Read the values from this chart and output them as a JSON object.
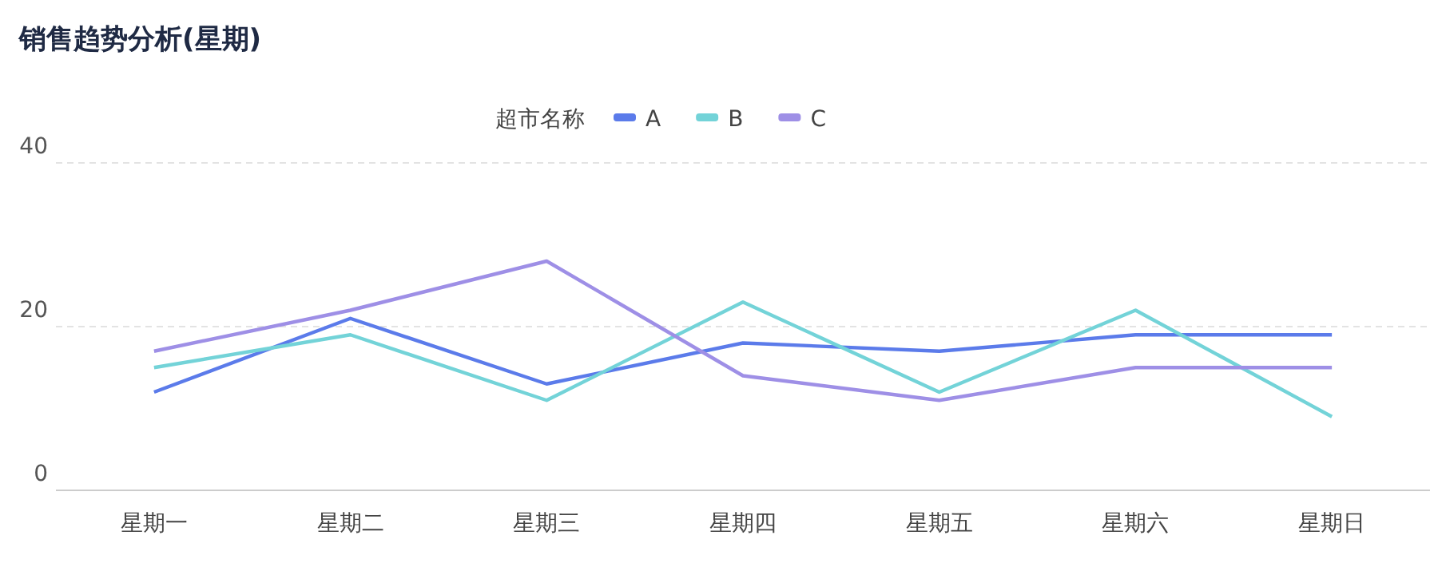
{
  "chart_data": {
    "type": "line",
    "title": "销售趋势分析(星期)",
    "legend_title": "超市名称",
    "legend": "top",
    "categories": [
      "星期一",
      "星期二",
      "星期三",
      "星期四",
      "星期五",
      "星期六",
      "星期日"
    ],
    "series": [
      {
        "name": "A",
        "color": "#5b7bea",
        "values": [
          12,
          21,
          13,
          18,
          17,
          19,
          19
        ]
      },
      {
        "name": "B",
        "color": "#73d3d8",
        "values": [
          15,
          19,
          11,
          23,
          12,
          22,
          9
        ]
      },
      {
        "name": "C",
        "color": "#9e8fe6",
        "values": [
          17,
          22,
          28,
          14,
          11,
          15,
          15
        ]
      }
    ],
    "ylim": [
      0,
      40
    ],
    "yticks": [
      0,
      20,
      40
    ],
    "grid": "y",
    "marker": "none",
    "line_style": "solid"
  }
}
